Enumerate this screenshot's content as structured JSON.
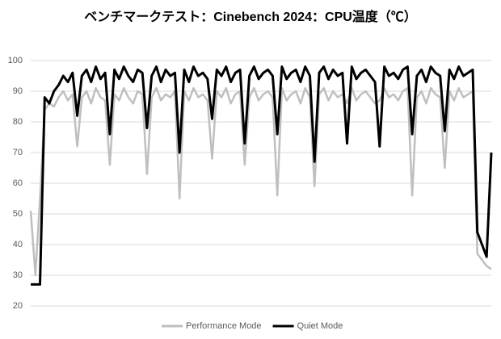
{
  "chart_data": {
    "type": "line",
    "title": "ベンチマークテスト：Cinebench 2024：CPU温度（℃）",
    "ylim": [
      20,
      100
    ],
    "yticks": [
      20,
      30,
      40,
      50,
      60,
      70,
      80,
      90,
      100
    ],
    "grid": true,
    "legend": "bottom",
    "series": [
      {
        "name": "Performance Mode",
        "color": "#bfbfbf",
        "values": [
          51,
          30,
          55,
          84,
          86,
          85,
          88,
          90,
          87,
          89,
          72,
          88,
          90,
          86,
          91,
          88,
          87,
          66,
          89,
          87,
          91,
          88,
          86,
          90,
          89,
          63,
          88,
          91,
          87,
          89,
          88,
          90,
          55,
          90,
          87,
          91,
          88,
          89,
          87,
          68,
          90,
          88,
          91,
          86,
          89,
          90,
          66,
          88,
          91,
          87,
          89,
          90,
          88,
          56,
          91,
          87,
          89,
          90,
          86,
          91,
          88,
          59,
          89,
          91,
          87,
          90,
          88,
          89,
          86,
          91,
          87,
          89,
          90,
          88,
          86,
          87,
          91,
          88,
          89,
          87,
          90,
          91,
          56,
          88,
          90,
          86,
          91,
          89,
          88,
          65,
          90,
          87,
          91,
          88,
          89,
          90,
          37,
          35,
          33,
          32
        ]
      },
      {
        "name": "Quiet Mode",
        "color": "#000000",
        "values": [
          27,
          27,
          27,
          88,
          86,
          90,
          92,
          95,
          93,
          96,
          82,
          95,
          97,
          93,
          98,
          94,
          96,
          76,
          97,
          94,
          98,
          95,
          93,
          97,
          96,
          78,
          95,
          98,
          93,
          97,
          95,
          96,
          70,
          97,
          93,
          98,
          95,
          96,
          94,
          81,
          97,
          95,
          98,
          93,
          96,
          97,
          73,
          95,
          98,
          94,
          96,
          97,
          95,
          76,
          98,
          94,
          96,
          97,
          93,
          98,
          95,
          67,
          96,
          98,
          94,
          97,
          95,
          96,
          73,
          98,
          94,
          96,
          97,
          95,
          93,
          72,
          98,
          95,
          96,
          94,
          97,
          98,
          76,
          95,
          97,
          93,
          98,
          96,
          95,
          77,
          97,
          94,
          98,
          95,
          96,
          97,
          44,
          40,
          36,
          70
        ]
      }
    ]
  }
}
